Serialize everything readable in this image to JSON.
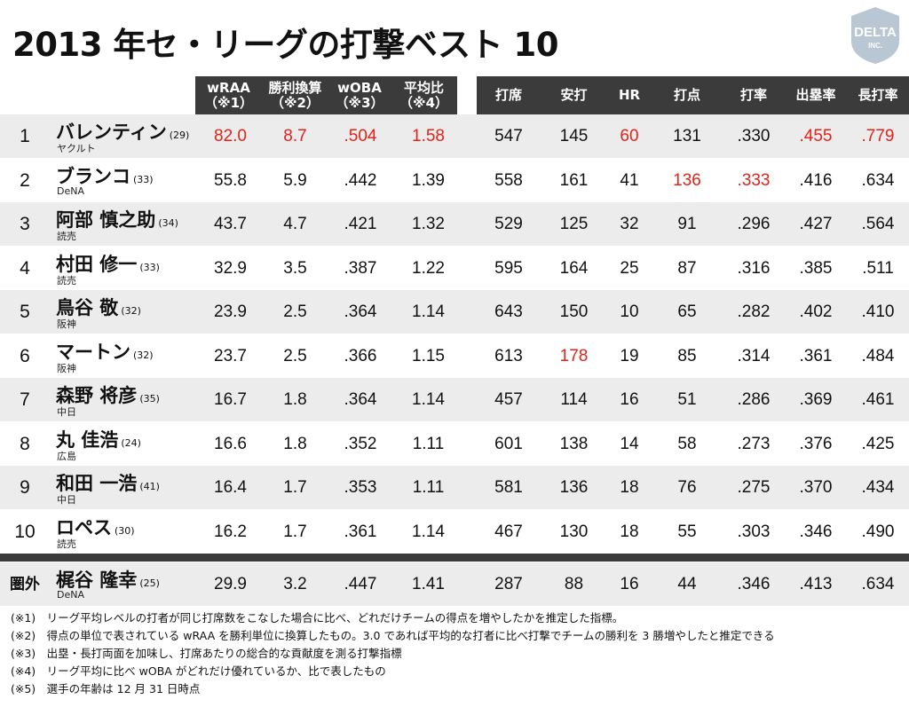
{
  "title": "2013 年セ・リーグの打撃ベスト 10",
  "logo": {
    "line1": "DELTA",
    "line2": "INC."
  },
  "headers": {
    "wraa": [
      "wRAA",
      "（※1）"
    ],
    "wins": [
      "勝利換算",
      "（※2）"
    ],
    "woba": [
      "wOBA",
      "（※3）"
    ],
    "ratio": [
      "平均比",
      "（※4）"
    ],
    "pa": "打席",
    "h": "安打",
    "hr": "HR",
    "rbi": "打点",
    "avg": "打率",
    "obp": "出塁率",
    "slg": "長打率"
  },
  "rows": [
    {
      "rank": "1",
      "name": "バレンティン",
      "age": "(29)",
      "team": "ヤクルト",
      "wraa": "82.0",
      "wins": "8.7",
      "woba": ".504",
      "ratio": "1.58",
      "pa": "547",
      "h": "145",
      "hr": "60",
      "rbi": "131",
      "avg": ".330",
      "obp": ".455",
      "slg": ".779"
    },
    {
      "rank": "2",
      "name": "ブランコ",
      "age": "(33)",
      "team": "DeNA",
      "wraa": "55.8",
      "wins": "5.9",
      "woba": ".442",
      "ratio": "1.39",
      "pa": "558",
      "h": "161",
      "hr": "41",
      "rbi": "136",
      "avg": ".333",
      "obp": ".416",
      "slg": ".634"
    },
    {
      "rank": "3",
      "name": "阿部 慎之助",
      "age": "(34)",
      "team": "読売",
      "wraa": "43.7",
      "wins": "4.7",
      "woba": ".421",
      "ratio": "1.32",
      "pa": "529",
      "h": "125",
      "hr": "32",
      "rbi": "91",
      "avg": ".296",
      "obp": ".427",
      "slg": ".564"
    },
    {
      "rank": "4",
      "name": "村田 修一",
      "age": "(33)",
      "team": "読売",
      "wraa": "32.9",
      "wins": "3.5",
      "woba": ".387",
      "ratio": "1.22",
      "pa": "595",
      "h": "164",
      "hr": "25",
      "rbi": "87",
      "avg": ".316",
      "obp": ".385",
      "slg": ".511"
    },
    {
      "rank": "5",
      "name": "鳥谷 敬",
      "age": "(32)",
      "team": "阪神",
      "wraa": "23.9",
      "wins": "2.5",
      "woba": ".364",
      "ratio": "1.14",
      "pa": "643",
      "h": "150",
      "hr": "10",
      "rbi": "65",
      "avg": ".282",
      "obp": ".402",
      "slg": ".410"
    },
    {
      "rank": "6",
      "name": "マートン",
      "age": "(32)",
      "team": "阪神",
      "wraa": "23.7",
      "wins": "2.5",
      "woba": ".366",
      "ratio": "1.15",
      "pa": "613",
      "h": "178",
      "hr": "19",
      "rbi": "85",
      "avg": ".314",
      "obp": ".361",
      "slg": ".484"
    },
    {
      "rank": "7",
      "name": "森野 将彦",
      "age": "(35)",
      "team": "中日",
      "wraa": "16.7",
      "wins": "1.8",
      "woba": ".364",
      "ratio": "1.14",
      "pa": "457",
      "h": "114",
      "hr": "16",
      "rbi": "51",
      "avg": ".286",
      "obp": ".369",
      "slg": ".461"
    },
    {
      "rank": "8",
      "name": "丸 佳浩",
      "age": "(24)",
      "team": "広島",
      "wraa": "16.6",
      "wins": "1.8",
      "woba": ".352",
      "ratio": "1.11",
      "pa": "601",
      "h": "138",
      "hr": "14",
      "rbi": "58",
      "avg": ".273",
      "obp": ".376",
      "slg": ".425"
    },
    {
      "rank": "9",
      "name": "和田 一浩",
      "age": "(41)",
      "team": "中日",
      "wraa": "16.4",
      "wins": "1.7",
      "woba": ".353",
      "ratio": "1.11",
      "pa": "581",
      "h": "136",
      "hr": "18",
      "rbi": "76",
      "avg": ".275",
      "obp": ".370",
      "slg": ".434"
    },
    {
      "rank": "10",
      "name": "ロペス",
      "age": "(30)",
      "team": "読売",
      "wraa": "16.2",
      "wins": "1.7",
      "woba": ".361",
      "ratio": "1.14",
      "pa": "467",
      "h": "130",
      "hr": "18",
      "rbi": "55",
      "avg": ".303",
      "obp": ".346",
      "slg": ".490"
    }
  ],
  "outside": {
    "rank": "圏外",
    "name": "梶谷 隆幸",
    "age": "(25)",
    "team": "DeNA",
    "wraa": "29.9",
    "wins": "3.2",
    "woba": ".447",
    "ratio": "1.41",
    "pa": "287",
    "h": "88",
    "hr": "16",
    "rbi": "44",
    "avg": ".346",
    "obp": ".413",
    "slg": ".634"
  },
  "highlight_color": "#e2231a",
  "highlights": {
    "0": [
      "wraa",
      "wins",
      "woba",
      "ratio",
      "hr",
      "obp",
      "slg"
    ],
    "1": [
      "rbi",
      "avg"
    ],
    "5": [
      "h"
    ]
  },
  "notes": [
    "(※1)　リーグ平均レベルの打者が同じ打席数をこなした場合に比べ、どれだけチームの得点を増やしたかを推定した指標。",
    "(※2)　得点の単位で表されている wRAA を勝利単位に換算したもの。3.0 であれば平均的な打者に比べ打撃でチームの勝利を 3 勝増やしたと推定できる",
    "(※3)　出塁・長打両面を加味し、打席あたりの総合的な貢献度を測る打撃指標",
    "(※4)　リーグ平均に比べ wOBA がどれだけ優れているか、比で表したもの",
    "(※5)　選手の年齢は 12 月 31 日時点"
  ]
}
